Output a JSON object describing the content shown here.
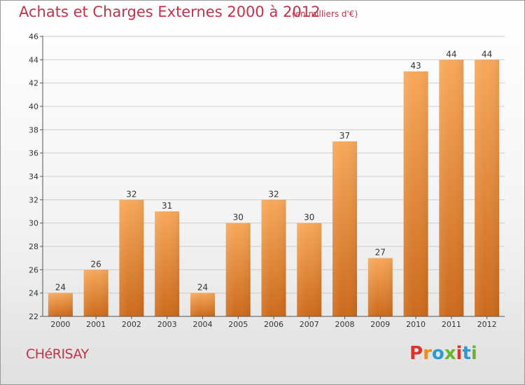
{
  "header": {
    "title": "Achats et Charges Externes 2000 à 2012",
    "subtitle": "(en milliers d'€)"
  },
  "footer": {
    "commune": "CHéRISAY",
    "brand": "Proxiti",
    "brand_colors": [
      "#e0322c",
      "#f08c1e",
      "#2c9ad8",
      "#6ab52e",
      "#e0322c",
      "#2c9ad8",
      "#6ab52e"
    ]
  },
  "colors": {
    "title": "#c0334a",
    "bar_top": "#f7a85a",
    "bar_bottom": "#cc6a1c",
    "grid": "#cccccc"
  },
  "chart_data": {
    "type": "bar",
    "categories": [
      "2000",
      "2001",
      "2002",
      "2003",
      "2004",
      "2005",
      "2006",
      "2007",
      "2008",
      "2009",
      "2010",
      "2011",
      "2012"
    ],
    "values": [
      24,
      26,
      32,
      31,
      24,
      30,
      32,
      30,
      37,
      27,
      43,
      44,
      44
    ],
    "ylim": [
      22,
      46
    ],
    "yticks": [
      22,
      24,
      26,
      28,
      30,
      32,
      34,
      36,
      38,
      40,
      42,
      44,
      46
    ],
    "grid": true,
    "xlabel": "",
    "ylabel": ""
  }
}
